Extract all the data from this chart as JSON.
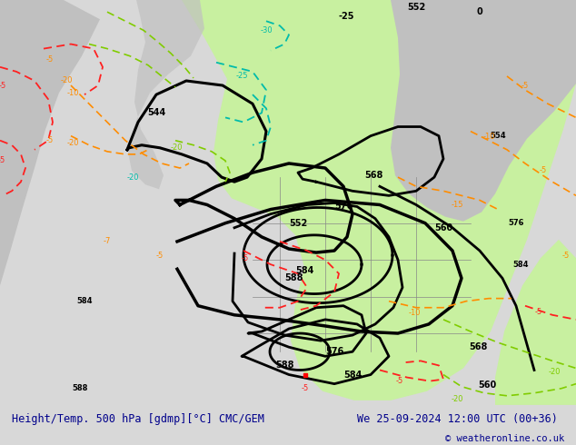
{
  "title_left": "Height/Temp. 500 hPa [gdmp][°C] CMC/GEM",
  "title_right": "We 25-09-2024 12:00 UTC (00+36)",
  "copyright": "© weatheronline.co.uk",
  "bg_color": "#d8d8d8",
  "green_color": "#c8f0a0",
  "fig_width": 6.34,
  "fig_height": 4.9,
  "dpi": 100,
  "orange": "#FF8C00",
  "red": "#FF2020",
  "cyan": "#00BBAA",
  "lime": "#80CC00",
  "darkblue": "#00008B"
}
